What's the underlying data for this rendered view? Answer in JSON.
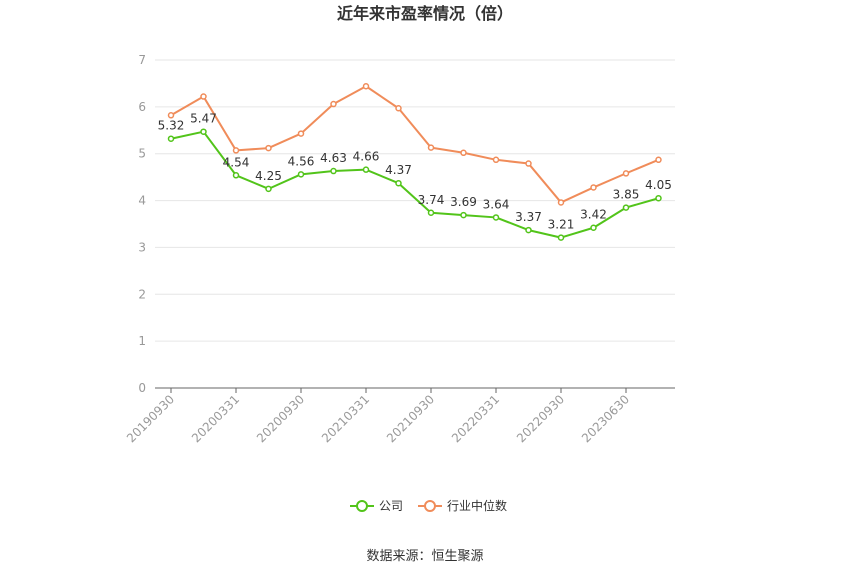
{
  "chart_data": {
    "type": "line",
    "title": "近年来市盈率情况（倍）",
    "source": "数据来源：恒生聚源",
    "x_tick_labels": [
      "20190930",
      "20200331",
      "20200930",
      "20210331",
      "20210930",
      "20220331",
      "20220930",
      "20230630"
    ],
    "ylim": [
      0,
      7
    ],
    "y_ticks": [
      "0",
      "1",
      "2",
      "3",
      "4",
      "5",
      "6",
      "7"
    ],
    "grid": true,
    "legend_position": "bottom-center",
    "series": [
      {
        "name": "公司",
        "color": "#52c41a",
        "values": [
          5.32,
          5.47,
          4.54,
          4.25,
          4.56,
          4.63,
          4.66,
          4.37,
          3.74,
          3.69,
          3.64,
          3.37,
          3.21,
          3.42,
          3.85,
          4.05
        ],
        "labels": [
          "5.32",
          "5.47",
          "4.54",
          "4.25",
          "4.56",
          "4.63",
          "4.66",
          "4.37",
          "3.74",
          "3.69",
          "3.64",
          "3.37",
          "3.21",
          "3.42",
          "3.85",
          "4.05"
        ]
      },
      {
        "name": "行业中位数",
        "color": "#f08c5a",
        "values": [
          5.82,
          6.22,
          5.07,
          5.12,
          5.43,
          6.06,
          6.44,
          5.97,
          5.13,
          5.02,
          4.87,
          4.79,
          3.96,
          4.28,
          4.58,
          4.87
        ]
      }
    ]
  }
}
